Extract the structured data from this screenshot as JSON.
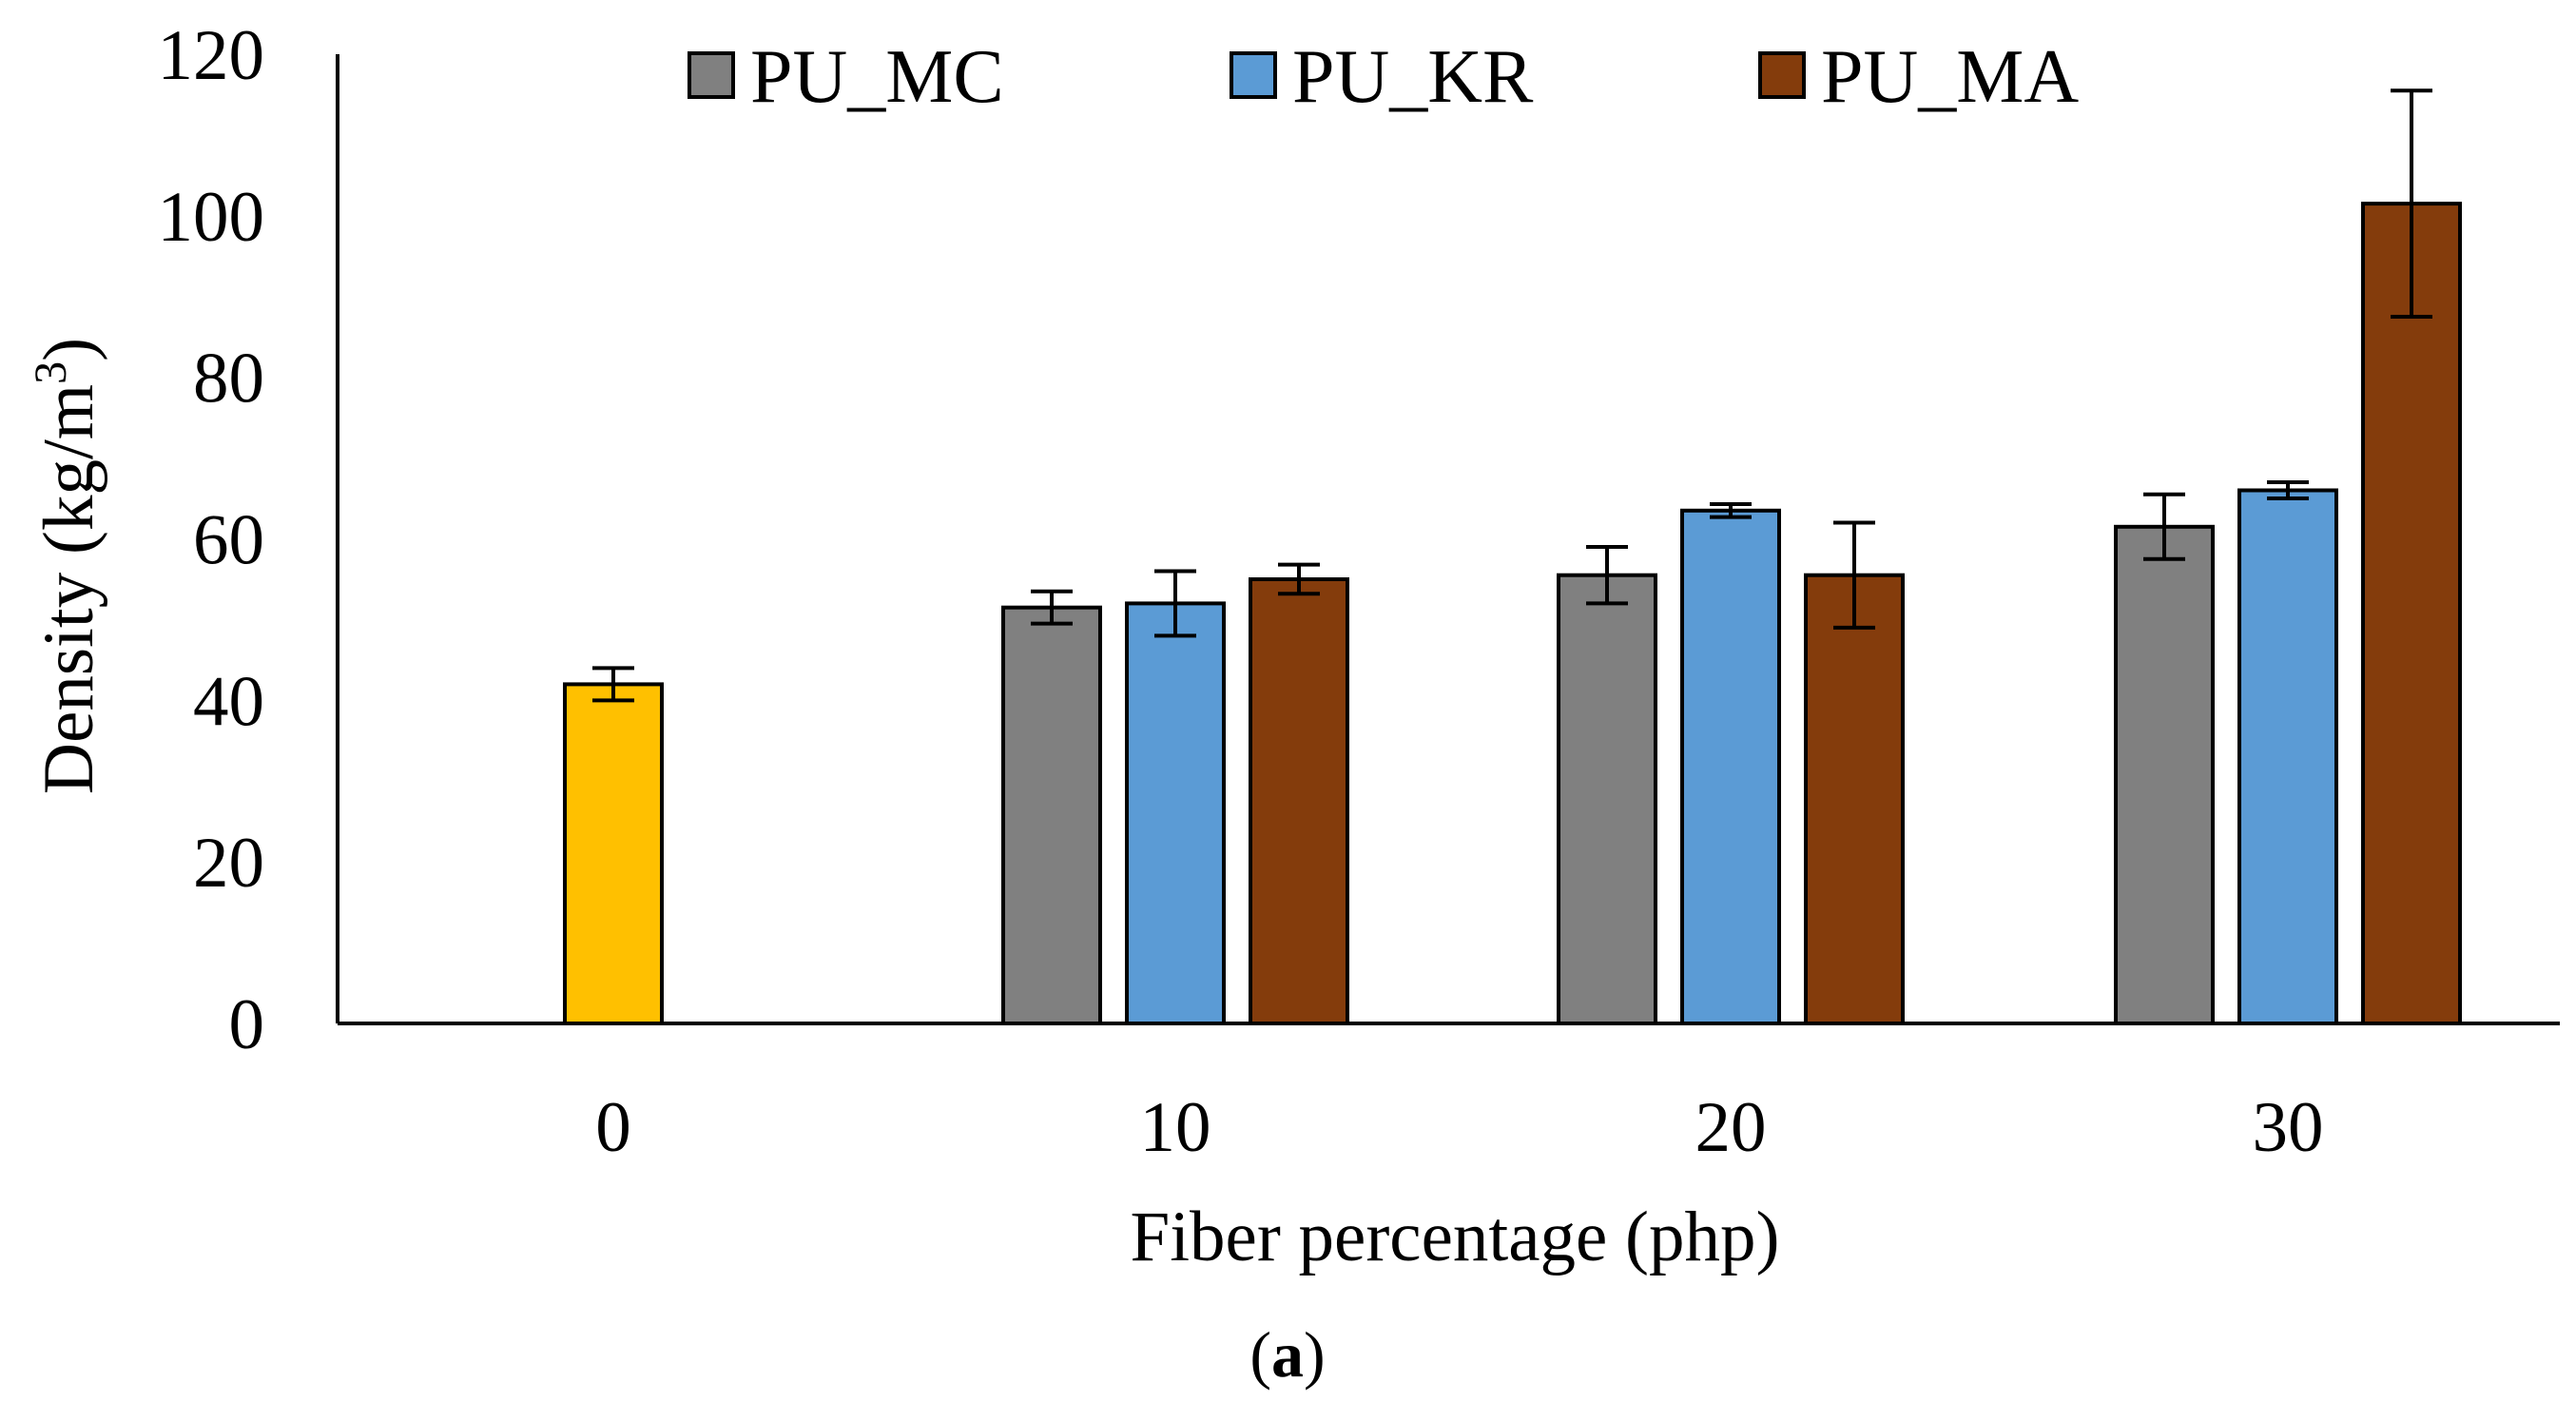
{
  "chart_data": {
    "type": "bar",
    "title": "",
    "xlabel": "Fiber percentage (php)",
    "ylabel": "Density (kg/m",
    "ylabel_superscript": "3",
    "ylabel_suffix": ")",
    "ylim": [
      0,
      120
    ],
    "yticks": [
      0,
      20,
      40,
      60,
      80,
      100,
      120
    ],
    "categories": [
      "0",
      "10",
      "20",
      "30"
    ],
    "legend_position": "top",
    "panel_label": {
      "open": "(",
      "letter": "a",
      "close": ")"
    },
    "series": [
      {
        "name": "PU",
        "in_legend": false,
        "color": "#FFC000",
        "values": [
          42,
          null,
          null,
          null
        ],
        "errors": [
          2,
          null,
          null,
          null
        ]
      },
      {
        "name": "PU_MC",
        "in_legend": true,
        "color": "#808080",
        "values": [
          null,
          51.5,
          55.5,
          61.5
        ],
        "errors": [
          null,
          2,
          3.5,
          4
        ]
      },
      {
        "name": "PU_KR",
        "in_legend": true,
        "color": "#5B9BD5",
        "values": [
          null,
          52,
          63.5,
          66
        ],
        "errors": [
          null,
          4,
          0.8,
          1
        ]
      },
      {
        "name": "PU_MA",
        "in_legend": true,
        "color": "#843C0C",
        "values": [
          null,
          55,
          55.5,
          101.5
        ],
        "errors": [
          null,
          1.8,
          6.5,
          14
        ]
      }
    ]
  }
}
